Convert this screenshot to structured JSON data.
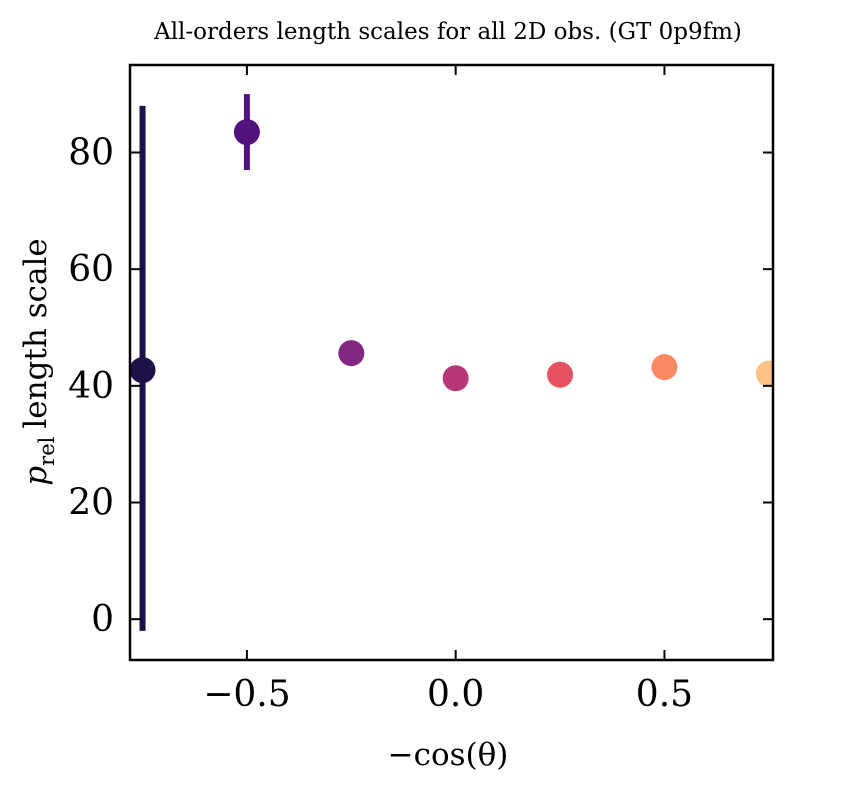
{
  "chart_data": {
    "type": "scatter",
    "title": "All-orders length scales for all 2D obs. (GT 0p9fm)",
    "xlabel": "−cos(θ)",
    "ylabel": {
      "symbol": "p",
      "subscript": "rel",
      "text": "length scale"
    },
    "xlim": [
      -0.78,
      0.76
    ],
    "ylim": [
      -7,
      95
    ],
    "xticks": [
      {
        "value": -0.5,
        "label": "−0.5"
      },
      {
        "value": 0.0,
        "label": "0.0"
      },
      {
        "value": 0.5,
        "label": "0.5"
      }
    ],
    "yticks": [
      {
        "value": 0,
        "label": "0"
      },
      {
        "value": 20,
        "label": "20"
      },
      {
        "value": 40,
        "label": "40"
      },
      {
        "value": 60,
        "label": "60"
      },
      {
        "value": 80,
        "label": "80"
      }
    ],
    "grid": false,
    "points": [
      {
        "x": -0.75,
        "y": 42.7,
        "err_low": -2,
        "err_high": 88,
        "color": "#1d1147"
      },
      {
        "x": -0.5,
        "y": 83.5,
        "err_low": 77,
        "err_high": 90,
        "color": "#51127c"
      },
      {
        "x": -0.25,
        "y": 45.6,
        "color": "#832681"
      },
      {
        "x": 0.0,
        "y": 41.3,
        "color": "#b73779"
      },
      {
        "x": 0.25,
        "y": 41.9,
        "color": "#e75263"
      },
      {
        "x": 0.5,
        "y": 43.2,
        "color": "#fc8961"
      },
      {
        "x": 0.75,
        "y": 42.1,
        "color": "#fec287"
      }
    ]
  }
}
